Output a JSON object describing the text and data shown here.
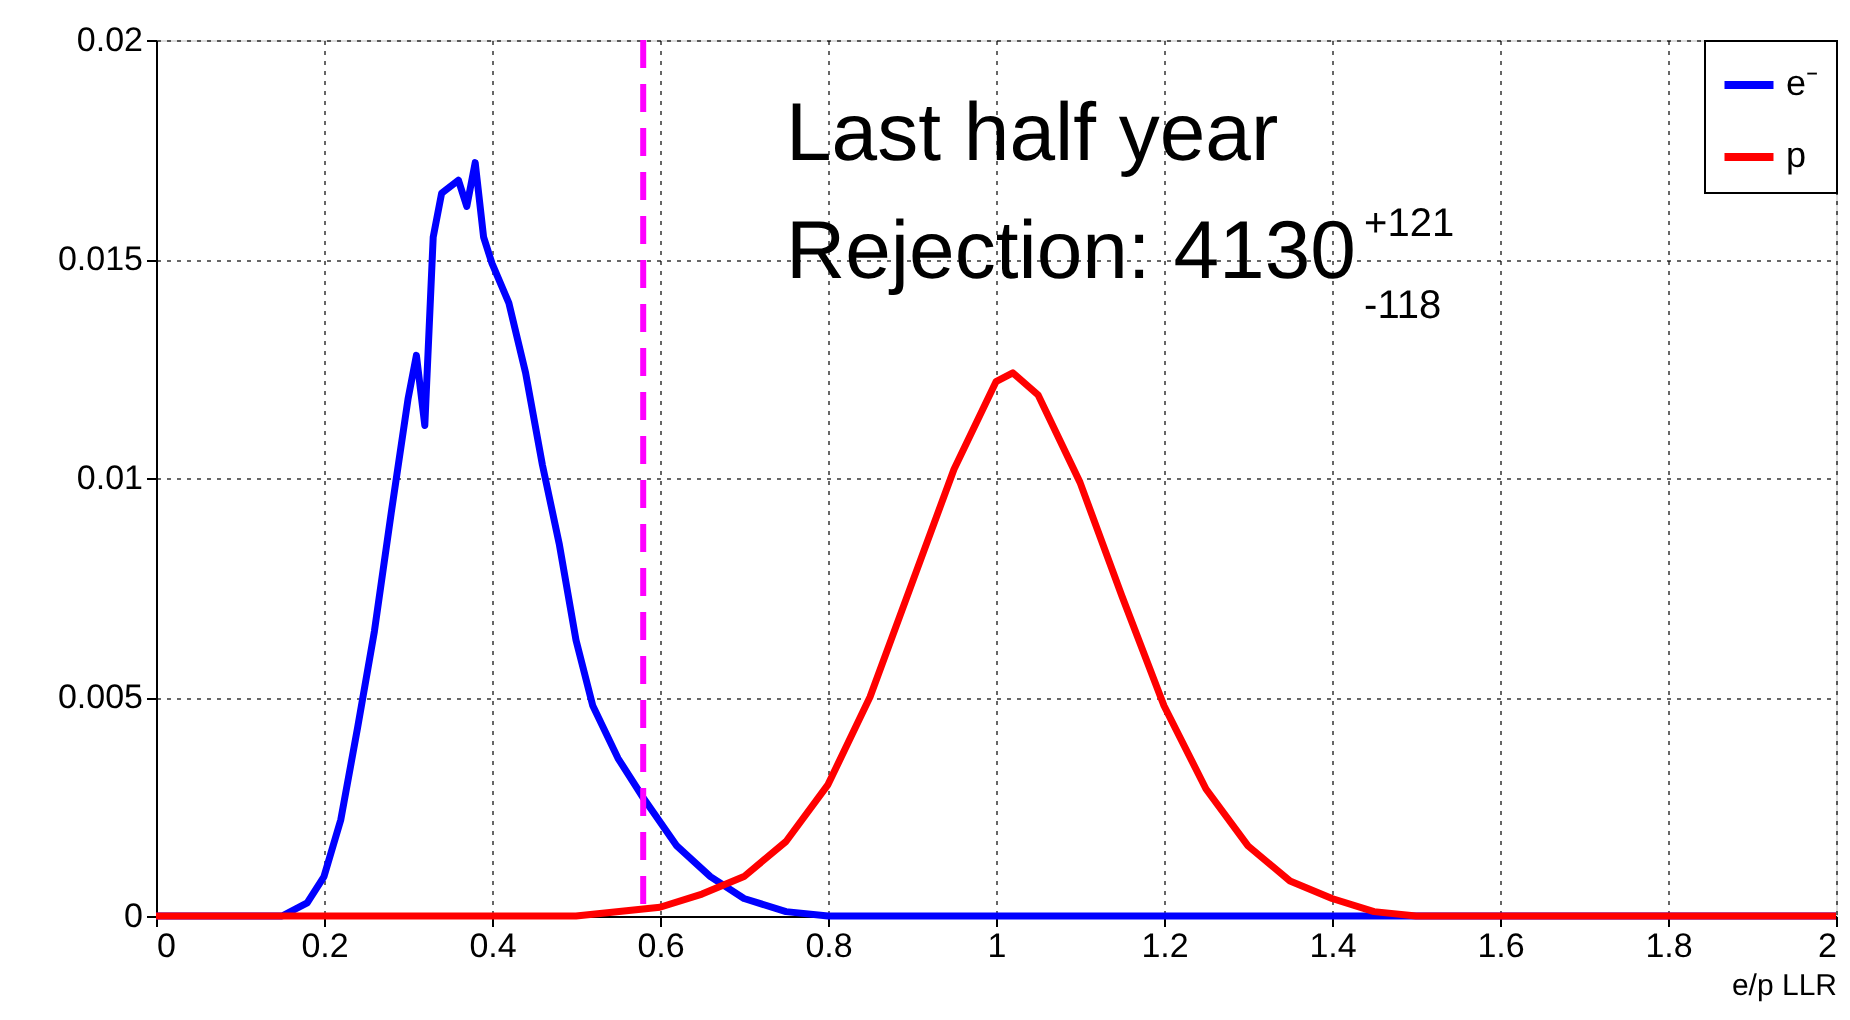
{
  "chart_data": {
    "type": "line",
    "xlabel": "e/p LLR",
    "annotations": [
      "Last half year",
      "Rejection: 4130$^{+121}$$_{-118}$"
    ],
    "xlim": [
      0,
      2
    ],
    "xticks": [
      0,
      0.2,
      0.4,
      0.6,
      0.8,
      1,
      1.2,
      1.4,
      1.6,
      1.8,
      2
    ],
    "ylim": [
      0,
      0.02
    ],
    "yticks": [
      0,
      0.005,
      0.01,
      0.015,
      0.02
    ],
    "grid": true,
    "legend": "top right",
    "line_style": "solid",
    "series": [
      {
        "name": "e⁻",
        "color": "#0000ff",
        "x": [
          0,
          0.15,
          0.18,
          0.2,
          0.22,
          0.24,
          0.26,
          0.28,
          0.3,
          0.31,
          0.32,
          0.33,
          0.34,
          0.36,
          0.37,
          0.38,
          0.39,
          0.4,
          0.42,
          0.44,
          0.46,
          0.48,
          0.5,
          0.52,
          0.55,
          0.58,
          0.62,
          0.66,
          0.7,
          0.75,
          0.8,
          0.9,
          2
        ],
        "values": [
          0,
          0,
          0.0003,
          0.0009,
          0.0022,
          0.0043,
          0.0065,
          0.0092,
          0.0118,
          0.0128,
          0.0112,
          0.0155,
          0.0165,
          0.0168,
          0.0162,
          0.0172,
          0.0155,
          0.0149,
          0.014,
          0.0124,
          0.0103,
          0.0085,
          0.0063,
          0.0048,
          0.0036,
          0.0027,
          0.0016,
          0.0009,
          0.0004,
          0.0001,
          0,
          0,
          0
        ]
      },
      {
        "name": "p",
        "color": "#ff0000",
        "x": [
          0,
          0.5,
          0.6,
          0.65,
          0.7,
          0.75,
          0.8,
          0.85,
          0.9,
          0.95,
          1.0,
          1.02,
          1.05,
          1.1,
          1.15,
          1.2,
          1.25,
          1.3,
          1.35,
          1.4,
          1.45,
          1.5,
          2
        ],
        "values": [
          0,
          0,
          0.0002,
          0.0005,
          0.0009,
          0.0017,
          0.003,
          0.005,
          0.0076,
          0.0102,
          0.0122,
          0.0124,
          0.0119,
          0.0099,
          0.0073,
          0.0048,
          0.0029,
          0.0016,
          0.0008,
          0.0004,
          0.0001,
          0,
          0
        ]
      }
    ],
    "ref_lines": [
      {
        "axis": "x",
        "value": 0.58,
        "color": "#ff00ff",
        "line_style": "dashed"
      }
    ]
  }
}
